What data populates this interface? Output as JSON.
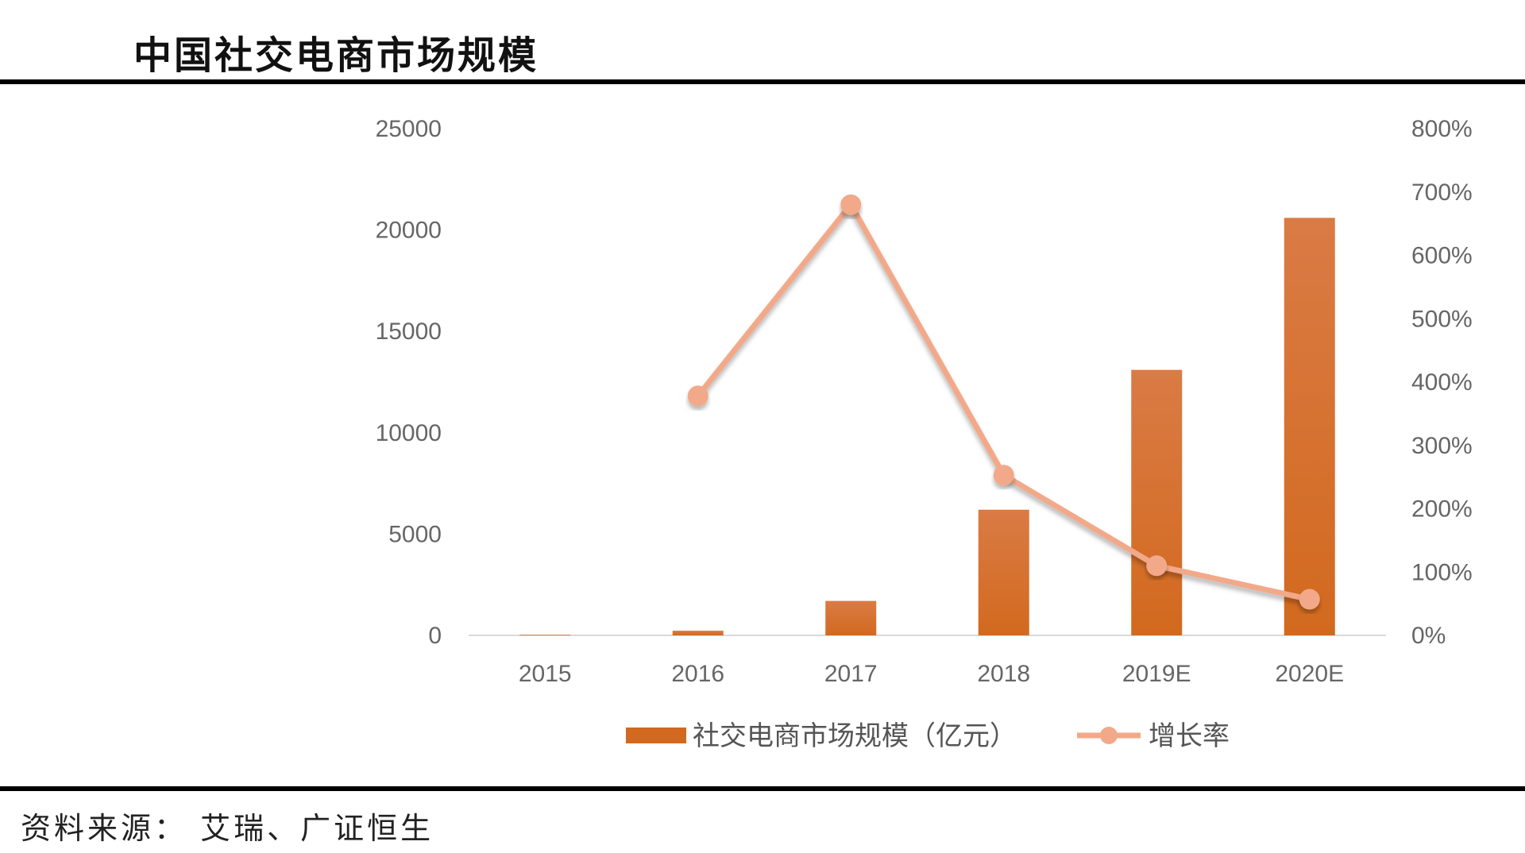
{
  "chart_data": {
    "type": "bar",
    "title": "中国社交电商市场规模",
    "categories": [
      "2015",
      "2016",
      "2017",
      "2018",
      "2019E",
      "2020E"
    ],
    "series": [
      {
        "name": "社交电商市场规模（亿元）",
        "type": "bar",
        "axis": "left",
        "values": [
          30,
          230,
          1700,
          6200,
          13100,
          20600
        ]
      },
      {
        "name": "增长率",
        "type": "line",
        "axis": "right",
        "values": [
          null,
          378,
          680,
          253,
          110,
          57
        ]
      }
    ],
    "y_left": {
      "min": 0,
      "max": 25000,
      "ticks": [
        0,
        5000,
        10000,
        15000,
        20000,
        25000
      ]
    },
    "y_right": {
      "min": 0,
      "max": 800,
      "ticks": [
        0,
        100,
        200,
        300,
        400,
        500,
        600,
        700,
        800
      ],
      "unit": "%"
    },
    "grid": false,
    "legend": "bottom-center",
    "colors": {
      "bar": "#D2691E",
      "line": "#F2A989"
    },
    "source": "资料来源： 艾瑞、广证恒生"
  }
}
